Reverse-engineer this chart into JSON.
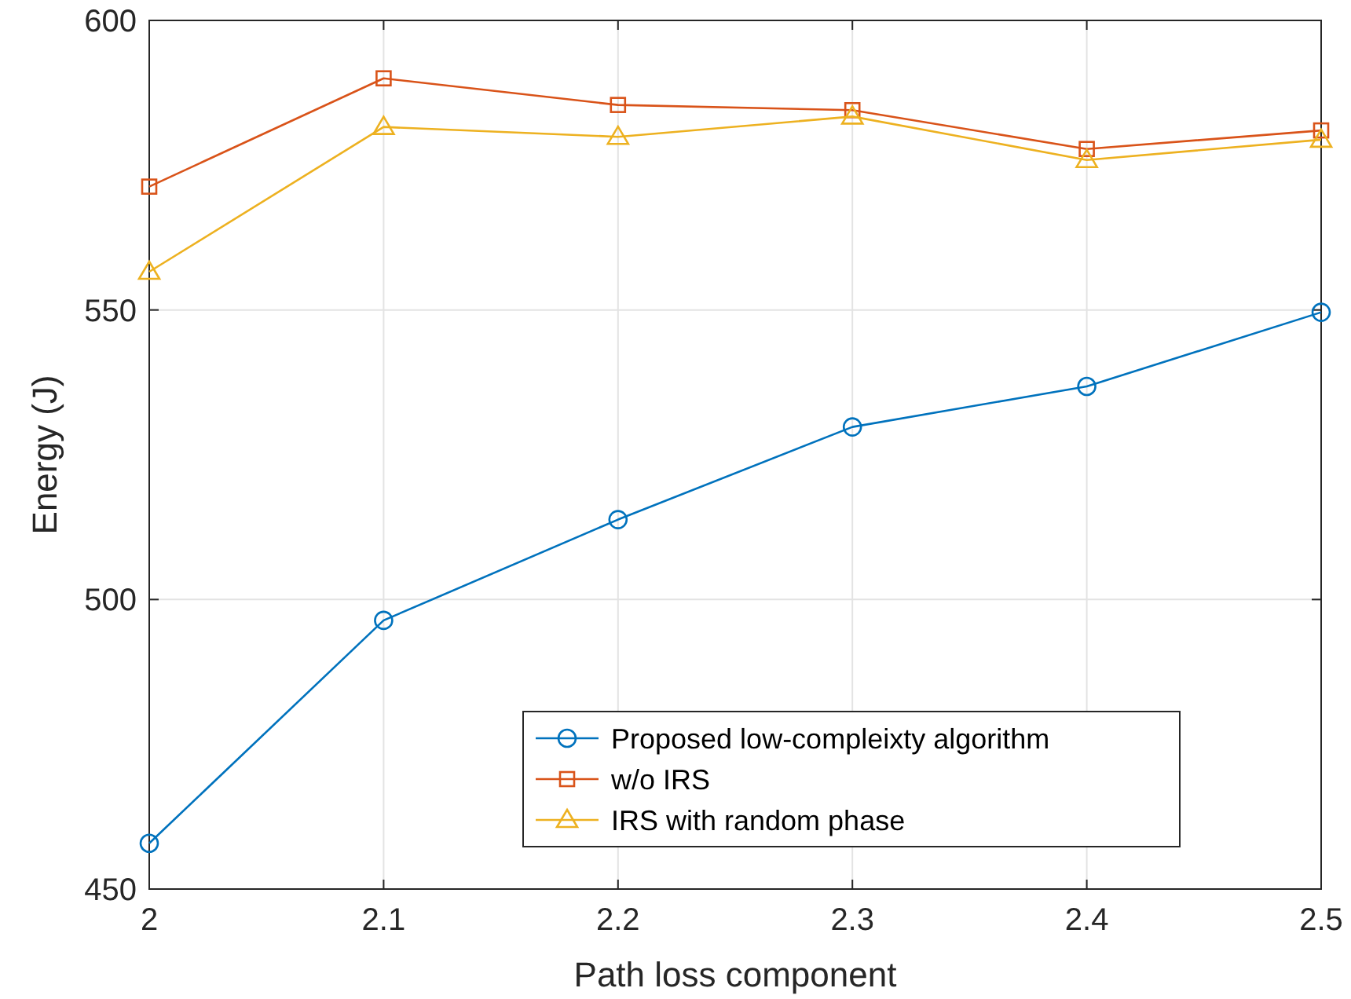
{
  "chart_data": {
    "type": "line",
    "xlabel": "Path loss component",
    "ylabel": "Energy (J)",
    "x": [
      2,
      2.1,
      2.2,
      2.3,
      2.4,
      2.5
    ],
    "xlim": [
      2,
      2.5
    ],
    "ylim": [
      450,
      600
    ],
    "xticks": [
      2,
      2.1,
      2.2,
      2.3,
      2.4,
      2.5
    ],
    "yticks": [
      450,
      500,
      550,
      600
    ],
    "grid": true,
    "legend": "bottom right",
    "series": [
      {
        "name": "Proposed low-compleixty algorithm",
        "color": "#0072bd",
        "marker": "circle",
        "values": [
          457.9,
          496.4,
          513.8,
          529.8,
          536.8,
          549.6
        ]
      },
      {
        "name": "w/o IRS",
        "color": "#d95319",
        "marker": "square",
        "values": [
          571.3,
          590,
          585.4,
          584.5,
          577.8,
          581
        ]
      },
      {
        "name": "IRS with random phase",
        "color": "#edb120",
        "marker": "triangle",
        "values": [
          556.6,
          581.6,
          579.9,
          583.4,
          575.9,
          579.4
        ]
      }
    ]
  }
}
